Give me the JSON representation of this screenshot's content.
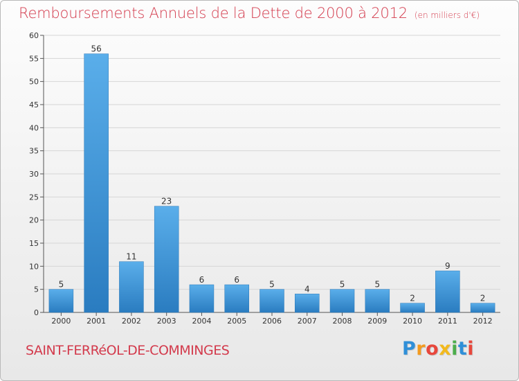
{
  "header": {
    "title": "Remboursements Annuels de la Dette de 2000 à 2012",
    "unit": "(en milliers d'€)"
  },
  "footer": {
    "commune": "SAINT-FERRéOL-DE-COMMINGES",
    "brand_letters": [
      "P",
      "r",
      "o",
      "x",
      "i",
      "t",
      "i"
    ],
    "brand_colors": [
      "#2f8fd8",
      "#f39a1f",
      "#e8473c",
      "#f2b91c",
      "#4cae4c",
      "#2f8fd8",
      "#e8473c"
    ]
  },
  "chart_data": {
    "type": "bar",
    "title": "Remboursements Annuels de la Dette de 2000 à 2012",
    "subtitle": "(en milliers d'€)",
    "categories": [
      "2000",
      "2001",
      "2002",
      "2003",
      "2004",
      "2005",
      "2006",
      "2007",
      "2008",
      "2009",
      "2010",
      "2011",
      "2012"
    ],
    "values": [
      5,
      56,
      11,
      23,
      6,
      6,
      5,
      4,
      5,
      5,
      2,
      9,
      2
    ],
    "data_labels": [
      "5",
      "56",
      "11",
      "23",
      "6",
      "6",
      "5",
      "4",
      "5",
      "5",
      "2",
      "9",
      "2"
    ],
    "ylim": [
      0,
      60
    ],
    "yticks": [
      "0",
      "5",
      "10",
      "15",
      "20",
      "25",
      "30",
      "35",
      "40",
      "45",
      "50",
      "55",
      "60"
    ],
    "grid": true,
    "colors": {
      "bar_light": "#5aaeea",
      "bar_dark": "#2a7cc0",
      "grid": "#d6d6d6",
      "text": "#333333"
    }
  }
}
